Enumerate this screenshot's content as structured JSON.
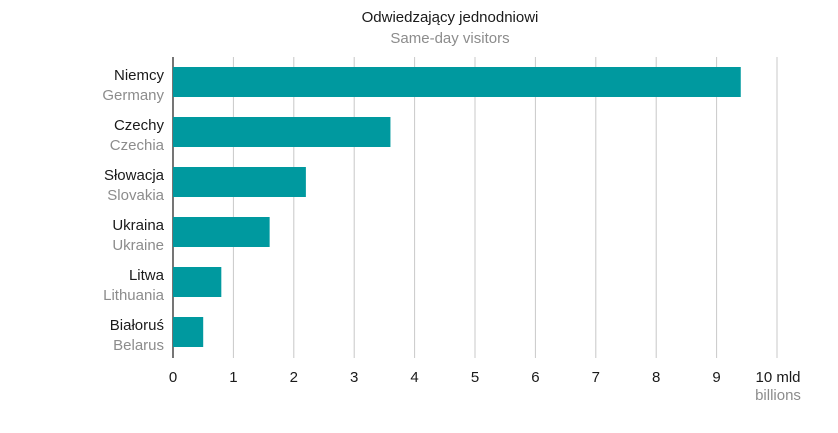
{
  "chart_data": {
    "type": "bar",
    "orientation": "horizontal",
    "title": "Odwiedzający jednodniowi",
    "subtitle": "Same-day visitors",
    "categories": [
      {
        "label": "Niemcy",
        "label_en": "Germany"
      },
      {
        "label": "Czechy",
        "label_en": "Czechia"
      },
      {
        "label": "Słowacja",
        "label_en": "Slovakia"
      },
      {
        "label": "Ukraina",
        "label_en": "Ukraine"
      },
      {
        "label": "Litwa",
        "label_en": "Lithuania"
      },
      {
        "label": "Białoruś",
        "label_en": "Belarus"
      }
    ],
    "values": [
      9.4,
      3.6,
      2.2,
      1.6,
      0.8,
      0.5
    ],
    "xlim": [
      0,
      10
    ],
    "xticks": [
      "0",
      "1",
      "2",
      "3",
      "4",
      "5",
      "6",
      "7",
      "8",
      "9",
      "10 mld"
    ],
    "xunit_en": "billions",
    "grid": true,
    "colors": {
      "bar": "#00999f",
      "grid": "#c8c8c8",
      "axis": "#1a1a1a"
    }
  }
}
